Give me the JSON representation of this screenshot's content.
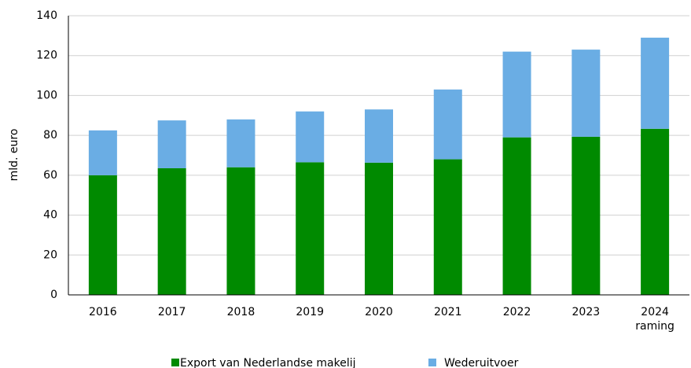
{
  "chart_data": {
    "type": "stacked_bar",
    "y_label": "mld. euro",
    "categories": [
      "2016",
      "2017",
      "2018",
      "2019",
      "2020",
      "2021",
      "2022",
      "2023",
      "2024\nraming"
    ],
    "series": [
      {
        "name": "Export van Nederlandse makelij",
        "color": "#008a00",
        "values": [
          60,
          63.5,
          64,
          66.5,
          66.3,
          68,
          79,
          79.3,
          83.3
        ]
      },
      {
        "name": "Wederuitvoer",
        "color": "#6aade4",
        "values": [
          22.5,
          24,
          24,
          25.5,
          26.7,
          35,
          43,
          43.7,
          45.7
        ]
      }
    ],
    "ylim": [
      0,
      140
    ],
    "yticks": [
      0,
      20,
      40,
      60,
      80,
      100,
      120,
      140
    ],
    "grid": true
  }
}
